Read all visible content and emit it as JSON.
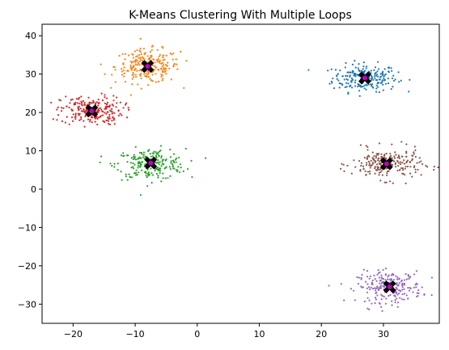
{
  "chart_data": {
    "type": "scatter",
    "title": "K-Means Clustering With Multiple Loops",
    "xlabel": "",
    "ylabel": "",
    "xlim": [
      -25,
      39
    ],
    "ylim": [
      -35,
      43
    ],
    "x_ticks": [
      -20,
      -10,
      0,
      10,
      20,
      30
    ],
    "y_ticks": [
      -30,
      -20,
      -10,
      0,
      10,
      20,
      30,
      40
    ],
    "grid": false,
    "legend": "none",
    "clusters": [
      {
        "color": "#1f77b4",
        "center": [
          27,
          29
        ],
        "spread": [
          2.6,
          1.8
        ],
        "count": 230
      },
      {
        "color": "#ff7f0e",
        "center": [
          -8,
          32
        ],
        "spread": [
          2.6,
          2.2
        ],
        "count": 230
      },
      {
        "color": "#2ca02c",
        "center": [
          -7.5,
          6.5
        ],
        "spread": [
          2.8,
          2.0
        ],
        "count": 230
      },
      {
        "color": "#d62728",
        "center": [
          -17,
          20.5
        ],
        "spread": [
          2.5,
          1.9
        ],
        "count": 230
      },
      {
        "color": "#9467bd",
        "center": [
          31,
          -25.5
        ],
        "spread": [
          2.6,
          2.0
        ],
        "count": 230
      },
      {
        "color": "#8c564b",
        "center": [
          30.5,
          6.5
        ],
        "spread": [
          2.8,
          2.0
        ],
        "count": 230
      }
    ],
    "centroids": [
      {
        "x": 27,
        "y": 29
      },
      {
        "x": -8,
        "y": 32
      },
      {
        "x": -7.5,
        "y": 6.8
      },
      {
        "x": -17,
        "y": 20.4
      },
      {
        "x": 31,
        "y": -25.5
      },
      {
        "x": 30.5,
        "y": 6.6
      }
    ],
    "centroid_outer_color": "#000000",
    "centroid_inner_color": "#c000c0"
  }
}
